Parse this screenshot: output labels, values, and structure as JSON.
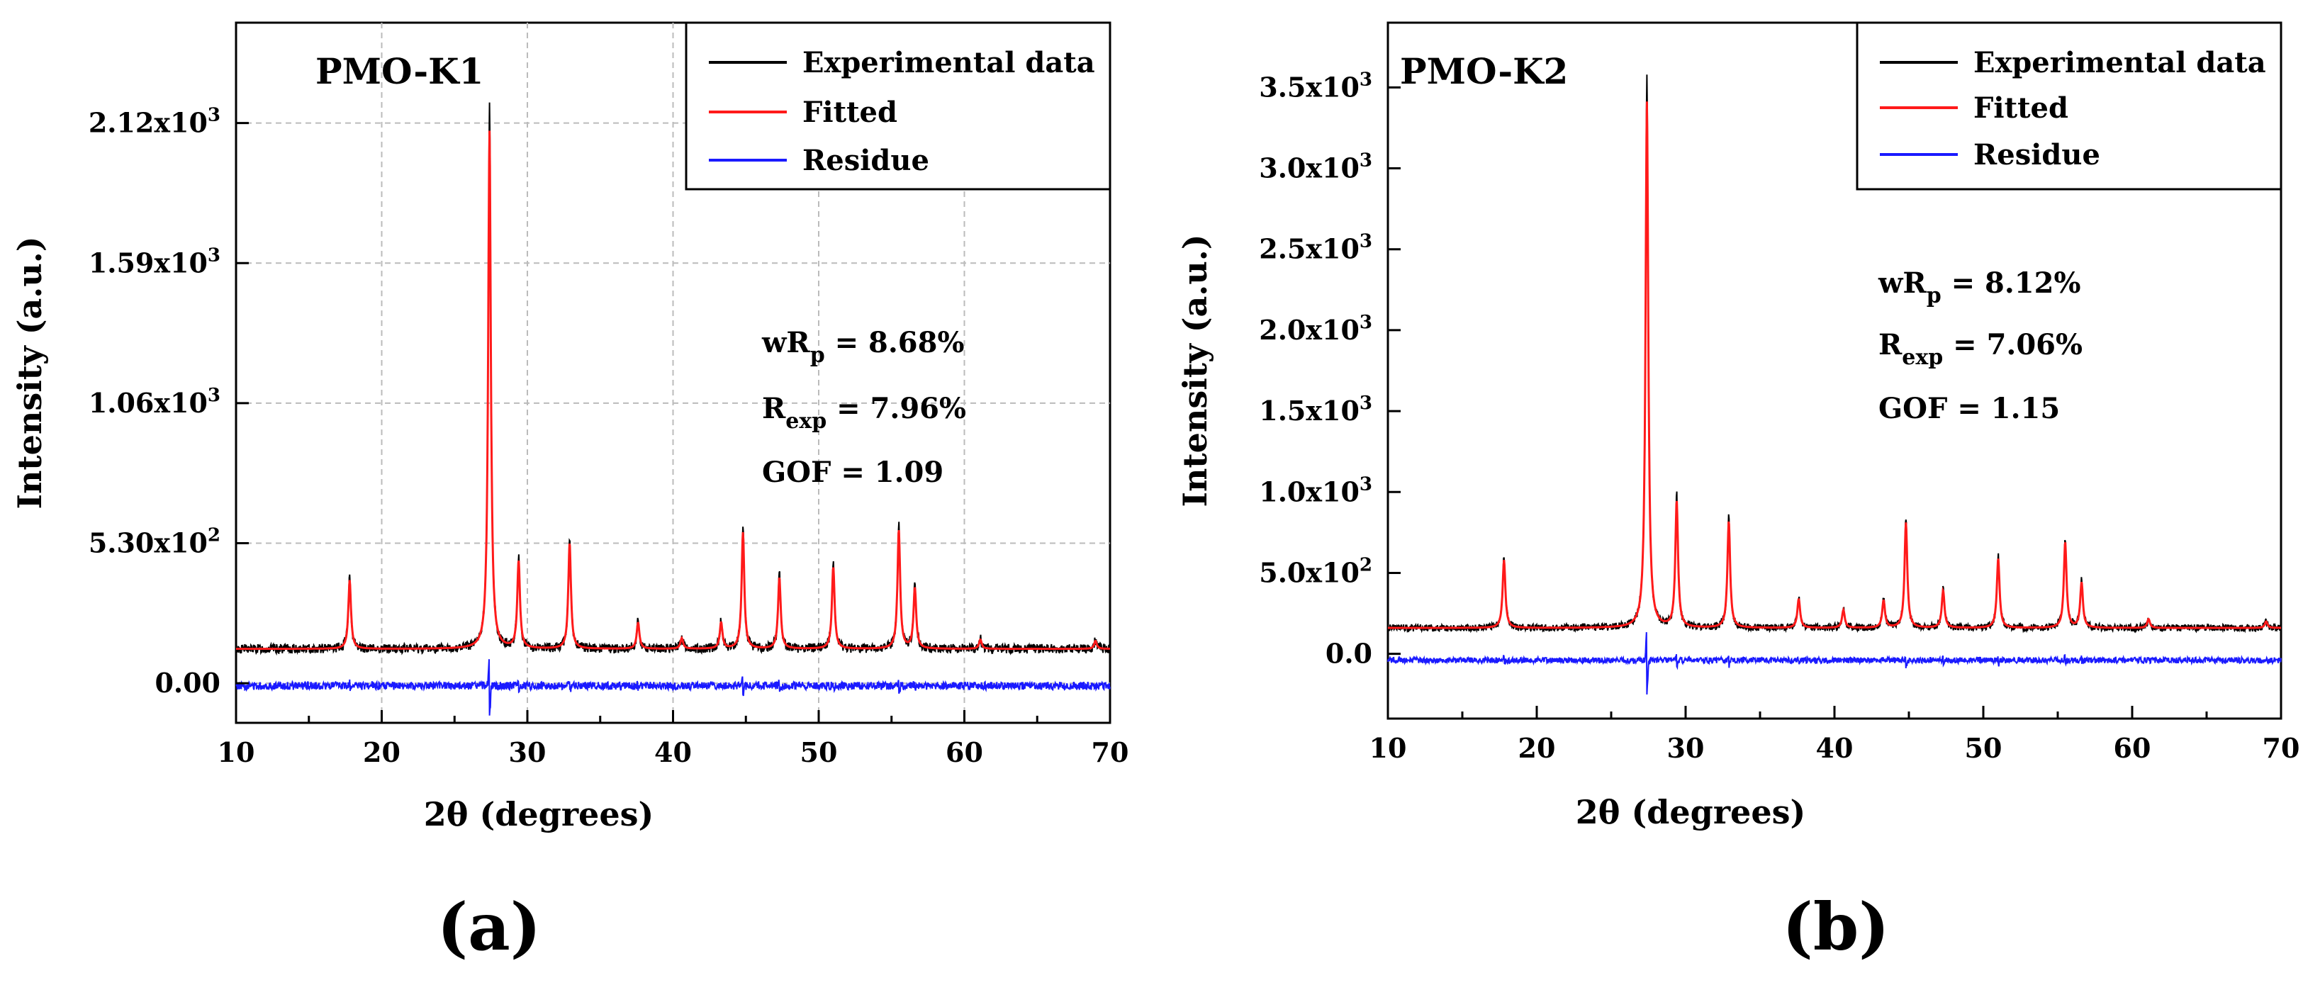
{
  "colors": {
    "experimental": "#000000",
    "fitted": "#ff1a1a",
    "residue": "#1a1aff"
  },
  "panels": [
    {
      "label": "(a)",
      "sample": "PMO-K1",
      "chart_data": {
        "type": "line",
        "xlabel": "2θ (degrees)",
        "ylabel": "Intensity (a.u.)",
        "xlim": [
          10,
          70
        ],
        "ylim": [
          -150,
          2500
        ],
        "grid": true,
        "legend_placement": "top-right",
        "xticks": [
          10,
          20,
          30,
          40,
          50,
          60,
          70
        ],
        "xtick_labels": [
          "10",
          "20",
          "30",
          "40",
          "50",
          "60",
          "70"
        ],
        "yticks": [
          0,
          530,
          1060,
          1590,
          2120
        ],
        "ytick_labels": [
          {
            "m": "0.00",
            "e": ""
          },
          {
            "m": "5.30x10",
            "e": "2"
          },
          {
            "m": "1.06x10",
            "e": "3"
          },
          {
            "m": "1.59x10",
            "e": "3"
          },
          {
            "m": "2.12x10",
            "e": "3"
          }
        ],
        "baseline": 130,
        "residue_offset": -10,
        "peaks": [
          [
            17.8,
            260
          ],
          [
            27.4,
            1960
          ],
          [
            29.4,
            330
          ],
          [
            32.9,
            400
          ],
          [
            37.6,
            100
          ],
          [
            40.6,
            40
          ],
          [
            43.3,
            100
          ],
          [
            44.8,
            440
          ],
          [
            47.3,
            270
          ],
          [
            51.0,
            310
          ],
          [
            55.5,
            450
          ],
          [
            56.6,
            230
          ],
          [
            61.1,
            35
          ],
          [
            69.0,
            30
          ]
        ],
        "legend": [
          "Experimental data",
          "Fitted",
          "Residue"
        ],
        "stats": [
          {
            "pre": "wR",
            "sub": "p",
            "post": " = 8.68%"
          },
          {
            "pre": "R",
            "sub": "exp",
            "post": " = 7.96%"
          },
          {
            "pre": "GOF = 1.09",
            "sub": "",
            "post": ""
          }
        ]
      }
    },
    {
      "label": "(b)",
      "sample": "PMO-K2",
      "chart_data": {
        "type": "line",
        "xlabel": "2θ (degrees)",
        "ylabel": "Intensity (a.u.)",
        "xlim": [
          10,
          70
        ],
        "ylim": [
          -400,
          3900
        ],
        "grid": false,
        "legend_placement": "top-right",
        "xticks": [
          10,
          20,
          30,
          40,
          50,
          60,
          70
        ],
        "xtick_labels": [
          "10",
          "20",
          "30",
          "40",
          "50",
          "60",
          "70"
        ],
        "yticks": [
          0,
          500,
          1000,
          1500,
          2000,
          2500,
          3000,
          3500
        ],
        "ytick_labels": [
          {
            "m": "0.0",
            "e": ""
          },
          {
            "m": "5.0x10",
            "e": "2"
          },
          {
            "m": "1.0x10",
            "e": "3"
          },
          {
            "m": "1.5x10",
            "e": "3"
          },
          {
            "m": "2.0x10",
            "e": "3"
          },
          {
            "m": "2.5x10",
            "e": "3"
          },
          {
            "m": "3.0x10",
            "e": "3"
          },
          {
            "m": "3.5x10",
            "e": "3"
          }
        ],
        "baseline": 160,
        "residue_offset": -40,
        "peaks": [
          [
            17.8,
            420
          ],
          [
            27.4,
            3250
          ],
          [
            29.4,
            780
          ],
          [
            32.9,
            660
          ],
          [
            37.6,
            180
          ],
          [
            40.6,
            110
          ],
          [
            43.3,
            170
          ],
          [
            44.8,
            650
          ],
          [
            47.3,
            230
          ],
          [
            51.0,
            430
          ],
          [
            55.5,
            530
          ],
          [
            56.6,
            280
          ],
          [
            61.1,
            55
          ],
          [
            69.0,
            40
          ]
        ],
        "legend": [
          "Experimental data",
          "Fitted",
          "Residue"
        ],
        "stats": [
          {
            "pre": "wR",
            "sub": "p",
            "post": " = 8.12%"
          },
          {
            "pre": "R",
            "sub": "exp",
            "post": " = 7.06%"
          },
          {
            "pre": "GOF = 1.15",
            "sub": "",
            "post": ""
          }
        ]
      }
    }
  ]
}
